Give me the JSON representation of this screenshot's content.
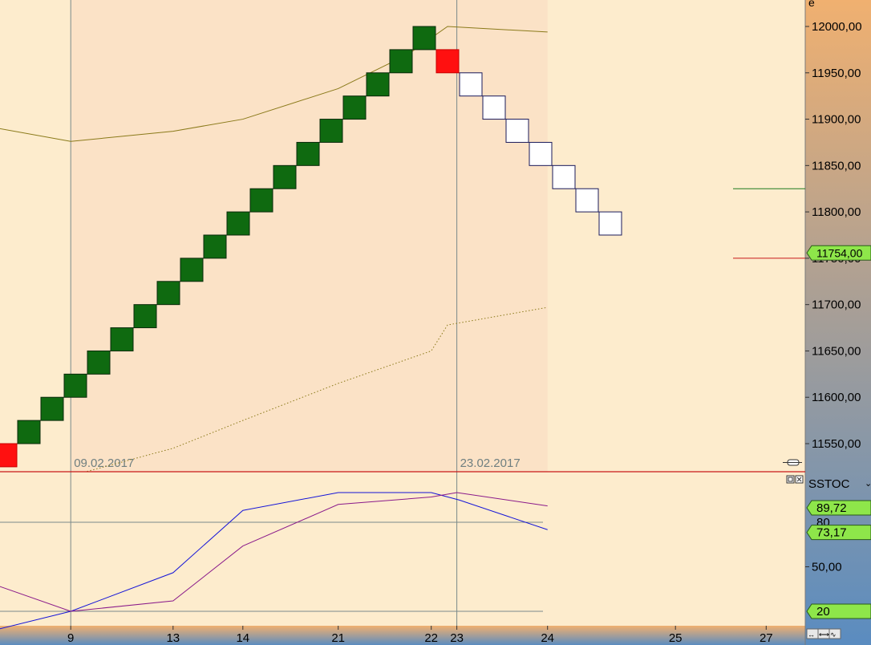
{
  "colors": {
    "background": "#fdeccd",
    "shaded_region": "#fbe2c6",
    "up_brick": "#0f6a10",
    "down_brick": "#ffffff",
    "reversal_brick": "#ff1010",
    "upper_band": "#8a7a1a",
    "lower_band": "#8a7a1a",
    "stoch_k": "#1414d8",
    "stoch_d": "#8a1a8a",
    "divider": "#c81818",
    "grid_line": "#7a8a8a",
    "label_green": "#8ee64a",
    "axis_gradient_top": "#f0b070",
    "axis_gradient_bottom": "#5a8cc0"
  },
  "chart_data": [
    {
      "type": "renko",
      "panel": "price",
      "x_index_range": [
        0,
        35
      ],
      "ylim": [
        11510,
        12025
      ],
      "y_ticks": [
        "12000,00",
        "11950,00",
        "11900,00",
        "11850,00",
        "11800,00",
        "11750,00",
        "11700,00",
        "11650,00",
        "11600,00",
        "11550,00"
      ],
      "y_tick_values": [
        12000,
        11950,
        11900,
        11850,
        11800,
        11750,
        11700,
        11650,
        11600,
        11550
      ],
      "brick_size": 50,
      "bricks": [
        {
          "i": 0,
          "top": 11550,
          "bottom": 11525,
          "dir": "reversal"
        },
        {
          "i": 1,
          "top": 11575,
          "bottom": 11550,
          "dir": "up"
        },
        {
          "i": 2,
          "top": 11600,
          "bottom": 11575,
          "dir": "up"
        },
        {
          "i": 3,
          "top": 11625,
          "bottom": 11600,
          "dir": "up"
        },
        {
          "i": 4,
          "top": 11650,
          "bottom": 11625,
          "dir": "up"
        },
        {
          "i": 5,
          "top": 11675,
          "bottom": 11650,
          "dir": "up"
        },
        {
          "i": 6,
          "top": 11700,
          "bottom": 11675,
          "dir": "up"
        },
        {
          "i": 7,
          "top": 11725,
          "bottom": 11700,
          "dir": "up"
        },
        {
          "i": 8,
          "top": 11750,
          "bottom": 11725,
          "dir": "up"
        },
        {
          "i": 9,
          "top": 11775,
          "bottom": 11750,
          "dir": "up"
        },
        {
          "i": 10,
          "top": 11800,
          "bottom": 11775,
          "dir": "up"
        },
        {
          "i": 11,
          "top": 11825,
          "bottom": 11800,
          "dir": "up"
        },
        {
          "i": 12,
          "top": 11850,
          "bottom": 11825,
          "dir": "up"
        },
        {
          "i": 13,
          "top": 11875,
          "bottom": 11850,
          "dir": "up"
        },
        {
          "i": 14,
          "top": 11900,
          "bottom": 11875,
          "dir": "up"
        },
        {
          "i": 15,
          "top": 11925,
          "bottom": 11900,
          "dir": "up"
        },
        {
          "i": 16,
          "top": 11950,
          "bottom": 11925,
          "dir": "up"
        },
        {
          "i": 17,
          "top": 11975,
          "bottom": 11950,
          "dir": "up"
        },
        {
          "i": 18,
          "top": 12000,
          "bottom": 11975,
          "dir": "up"
        },
        {
          "i": 19,
          "top": 11975,
          "bottom": 11950,
          "dir": "reversal"
        },
        {
          "i": 20,
          "top": 11950,
          "bottom": 11925,
          "dir": "down"
        },
        {
          "i": 21,
          "top": 11925,
          "bottom": 11900,
          "dir": "down"
        },
        {
          "i": 22,
          "top": 11900,
          "bottom": 11875,
          "dir": "down"
        },
        {
          "i": 23,
          "top": 11875,
          "bottom": 11850,
          "dir": "down"
        },
        {
          "i": 24,
          "top": 11850,
          "bottom": 11825,
          "dir": "down"
        },
        {
          "i": 25,
          "top": 11825,
          "bottom": 11800,
          "dir": "down"
        },
        {
          "i": 26,
          "top": 11800,
          "bottom": 11775,
          "dir": "down"
        }
      ],
      "upper_band": [
        [
          -0.3,
          11890
        ],
        [
          2.8,
          11876
        ],
        [
          7.2,
          11887
        ],
        [
          10.2,
          11900
        ],
        [
          14.3,
          11933
        ],
        [
          17.3,
          11970
        ],
        [
          19,
          12000
        ],
        [
          23.3,
          11994
        ]
      ],
      "lower_band": [
        [
          3.5,
          11520
        ],
        [
          7.2,
          11545
        ],
        [
          10.2,
          11575
        ],
        [
          14.3,
          11615
        ],
        [
          18.3,
          11650
        ],
        [
          19,
          11678
        ],
        [
          23.3,
          11697
        ]
      ],
      "shaded_x_range": [
        2.8,
        23.3
      ],
      "vertical_markers": [
        {
          "x": 2.8,
          "label": "09.02.2017"
        },
        {
          "x": 19.4,
          "label": "23.02.2017"
        }
      ],
      "level_lines": [
        {
          "value": 11825,
          "color": "#1f7a1f"
        },
        {
          "value": 11750,
          "color": "#c81818"
        }
      ],
      "last_value_label": "11754,00",
      "last_value": 11754
    },
    {
      "type": "line",
      "panel": "oscillator",
      "title": "SSTOC",
      "ylim": [
        4,
        114
      ],
      "y_ticks": [
        "50,00"
      ],
      "y_tick_values": [
        50
      ],
      "reference_lines": [
        {
          "value": 80,
          "label": "80"
        },
        {
          "value": 20,
          "label": "20"
        }
      ],
      "series": [
        {
          "name": "",
          "color": "#1414d8",
          "points": [
            [
              -0.3,
              8
            ],
            [
              2.8,
              20
            ],
            [
              7.2,
              46
            ],
            [
              10.2,
              88
            ],
            [
              14.3,
              100
            ],
            [
              18.3,
              100
            ],
            [
              19.5,
              95
            ],
            [
              23.3,
              75
            ]
          ]
        },
        {
          "name": "",
          "color": "#8a1a8a",
          "points": [
            [
              -0.3,
              37
            ],
            [
              2.8,
              20
            ],
            [
              7.2,
              27
            ],
            [
              10.2,
              64
            ],
            [
              14.3,
              92
            ],
            [
              18.3,
              97
            ],
            [
              19.4,
              100
            ],
            [
              23.3,
              91
            ]
          ]
        }
      ],
      "value_labels": [
        "89,72",
        "80",
        "73,17",
        "20"
      ],
      "value_label_values": [
        89.72,
        80,
        73.17,
        20
      ]
    }
  ],
  "x_axis": {
    "ticks": [
      {
        "x": 2.8,
        "label": "9"
      },
      {
        "x": 7.2,
        "label": "13"
      },
      {
        "x": 10.2,
        "label": "14"
      },
      {
        "x": 14.3,
        "label": "21"
      },
      {
        "x": 18.3,
        "label": "22"
      },
      {
        "x": 19.4,
        "label": "23"
      },
      {
        "x": 23.3,
        "label": "24"
      },
      {
        "x": 28.8,
        "label": "25"
      },
      {
        "x": 32.7,
        "label": "27"
      }
    ]
  },
  "axis_header": "e"
}
